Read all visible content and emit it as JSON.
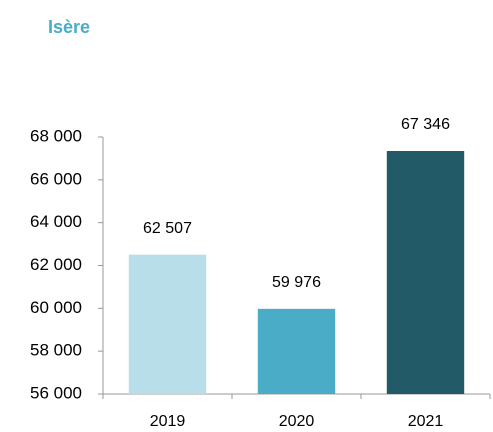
{
  "chart_data": {
    "type": "bar",
    "title": "Isère",
    "categories": [
      "2019",
      "2020",
      "2021"
    ],
    "values": [
      62507,
      59976,
      67346
    ],
    "value_labels": [
      "62 507",
      "59 976",
      "67 346"
    ],
    "colors": [
      "#b8dfe9",
      "#4aacc6",
      "#235a67"
    ],
    "title_color": "#4aacc6",
    "ylim": [
      56000,
      68000
    ],
    "yticks": [
      {
        "value": 56000,
        "label": "56 000"
      },
      {
        "value": 58000,
        "label": "58 000"
      },
      {
        "value": 60000,
        "label": "60 000"
      },
      {
        "value": 62000,
        "label": "62 000"
      },
      {
        "value": 64000,
        "label": "64 000"
      },
      {
        "value": 66000,
        "label": "66 000"
      },
      {
        "value": 68000,
        "label": "68 000"
      }
    ],
    "grid": false
  }
}
